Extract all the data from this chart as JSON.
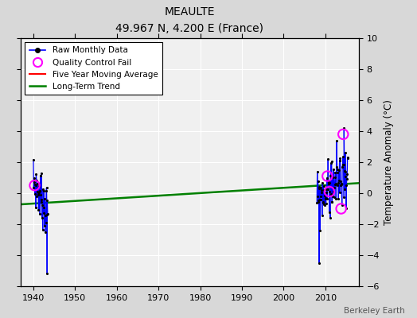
{
  "title": "MEAULTE",
  "subtitle": "49.967 N, 4.200 E (France)",
  "ylabel": "Temperature Anomaly (°C)",
  "attribution": "Berkeley Earth",
  "ylim": [
    -6,
    10
  ],
  "xlim": [
    1937,
    2018
  ],
  "xticks": [
    1940,
    1950,
    1960,
    1970,
    1980,
    1990,
    2000,
    2010
  ],
  "yticks": [
    -6,
    -4,
    -2,
    0,
    2,
    4,
    6,
    8,
    10
  ],
  "bg_color": "#d8d8d8",
  "plot_bg_color": "#f0f0f0",
  "long_term_trend": {
    "x": [
      1937,
      2018
    ],
    "y": [
      -0.72,
      0.65
    ]
  },
  "seed_40": 7,
  "seed_2010": 99
}
